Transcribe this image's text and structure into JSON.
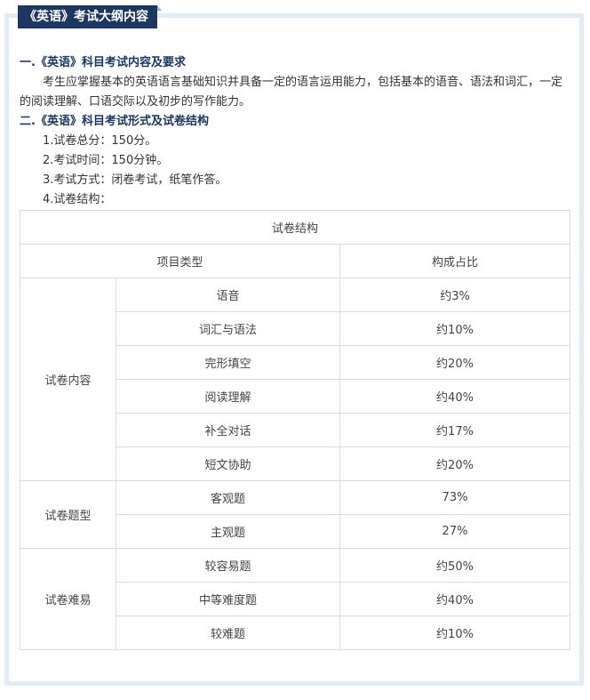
{
  "title": "《英语》考试大纲内容",
  "section1": {
    "heading": "一.《英语》科目考试内容及要求",
    "body": "考生应掌握基本的英语语言基础知识并具备一定的语言运用能力，包括基本的语音、语法和词汇，一定的阅读理解、口语交际以及初步的写作能力。"
  },
  "section2": {
    "heading": "二.《英语》科目考试形式及试卷结构",
    "items": [
      "1.试卷总分：150分。",
      "2.考试时间：150分钟。",
      "3.考试方式：闭卷考试，纸笔作答。",
      "4.试卷结构："
    ]
  },
  "table": {
    "caption": "试卷结构",
    "headers": [
      "项目类型",
      "构成占比"
    ],
    "groups": [
      {
        "name": "试卷内容",
        "rows": [
          [
            "语音",
            "约3%"
          ],
          [
            "词汇与语法",
            "约10%"
          ],
          [
            "完形填空",
            "约20%"
          ],
          [
            "阅读理解",
            "约40%"
          ],
          [
            "补全对话",
            "约17%"
          ],
          [
            "短文协助",
            "约20%"
          ]
        ]
      },
      {
        "name": "试卷题型",
        "rows": [
          [
            "客观题",
            "73%"
          ],
          [
            "主观题",
            "27%"
          ]
        ]
      },
      {
        "name": "试卷难易",
        "rows": [
          [
            "较容易题",
            "约50%"
          ],
          [
            "中等难度题",
            "约40%"
          ],
          [
            "较难题",
            "约10%"
          ]
        ]
      }
    ]
  }
}
